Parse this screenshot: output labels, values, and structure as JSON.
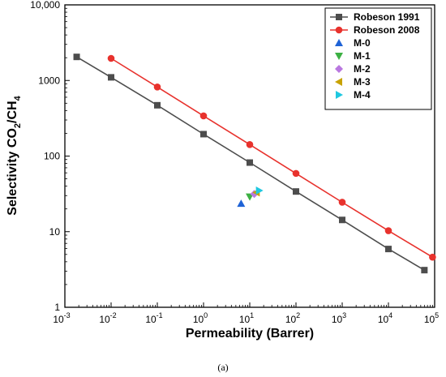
{
  "chart_data": {
    "type": "scatter",
    "xlabel": "Permeability (Barrer)",
    "ylabel_parts": [
      "Selectivity CO",
      "2",
      "/CH",
      "4"
    ],
    "x_scale": "log",
    "y_scale": "log",
    "xlim": [
      0.001,
      100000
    ],
    "ylim": [
      1,
      10000
    ],
    "x_ticks": [
      {
        "value": 0.001,
        "base": "10",
        "exp": "-3"
      },
      {
        "value": 0.01,
        "base": "10",
        "exp": "-2"
      },
      {
        "value": 0.1,
        "base": "10",
        "exp": "-1"
      },
      {
        "value": 1,
        "base": "10",
        "exp": "0"
      },
      {
        "value": 10,
        "base": "10",
        "exp": "1"
      },
      {
        "value": 100,
        "base": "10",
        "exp": "2"
      },
      {
        "value": 1000,
        "base": "10",
        "exp": "3"
      },
      {
        "value": 10000,
        "base": "10",
        "exp": "4"
      },
      {
        "value": 100000,
        "base": "10",
        "exp": "5"
      }
    ],
    "y_ticks": [
      {
        "value": 1,
        "label": "1"
      },
      {
        "value": 10,
        "label": "10"
      },
      {
        "value": 100,
        "label": "100"
      },
      {
        "value": 1000,
        "label": "1000"
      },
      {
        "value": 10000,
        "label": "10,000"
      }
    ],
    "legend_position": "top-right",
    "grid": false,
    "series": [
      {
        "name": "Robeson 1991",
        "color": "#4d4d4d",
        "marker": "square",
        "line": true,
        "x": [
          0.0018,
          0.01,
          0.1,
          1,
          10,
          100,
          1000,
          10000,
          60000
        ],
        "y": [
          2050,
          1100,
          470,
          195,
          82,
          34,
          14.3,
          5.9,
          3.1
        ]
      },
      {
        "name": "Robeson 2008",
        "color": "#e8322d",
        "marker": "circle",
        "line": true,
        "x": [
          0.01,
          0.1,
          1,
          10,
          100,
          1000,
          10000,
          90000
        ],
        "y": [
          1960,
          820,
          340,
          142,
          59,
          24.5,
          10.3,
          4.6
        ]
      },
      {
        "name": "M-0",
        "color": "#1f63d6",
        "marker": "triangle-up",
        "line": false,
        "x": [
          6.5
        ],
        "y": [
          23.5
        ]
      },
      {
        "name": "M-1",
        "color": "#3cb043",
        "marker": "triangle-down",
        "line": false,
        "x": [
          10
        ],
        "y": [
          29
        ]
      },
      {
        "name": "M-2",
        "color": "#b978e0",
        "marker": "diamond",
        "line": false,
        "x": [
          12.5
        ],
        "y": [
          31.5
        ]
      },
      {
        "name": "M-3",
        "color": "#c8a200",
        "marker": "triangle-left",
        "line": false,
        "x": [
          14
        ],
        "y": [
          33
        ]
      },
      {
        "name": "M-4",
        "color": "#1ec8e0",
        "marker": "triangle-right",
        "line": false,
        "x": [
          16
        ],
        "y": [
          35
        ]
      }
    ]
  },
  "caption": "(a)"
}
